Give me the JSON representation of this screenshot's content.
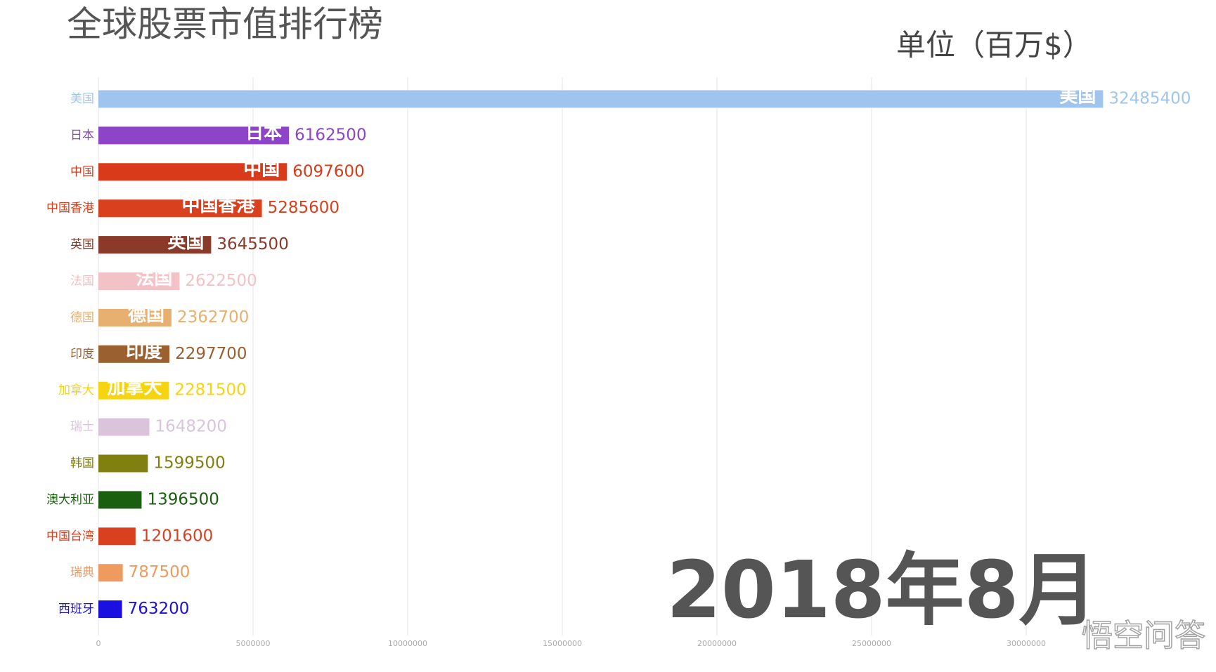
{
  "chart_data": {
    "type": "bar",
    "orientation": "horizontal",
    "title": "全球股票市值排行榜",
    "unit_label": "单位（百万$）",
    "date_label": "2018年8月",
    "watermark": "悟空问答",
    "categories": [
      "美国",
      "日本",
      "中国",
      "中国香港",
      "英国",
      "法国",
      "德国",
      "印度",
      "加拿大",
      "瑞士",
      "韩国",
      "澳大利亚",
      "中国台湾",
      "瑞典",
      "西班牙"
    ],
    "values": [
      32485400,
      6162500,
      6097600,
      5285600,
      3645500,
      2622500,
      2362700,
      2297700,
      2281500,
      1648200,
      1599500,
      1396500,
      1201600,
      787500,
      763200
    ],
    "colors": [
      "#9fc5ef",
      "#8e44c8",
      "#d93a1a",
      "#d9401e",
      "#8b3a2a",
      "#f2c2c6",
      "#e8b070",
      "#9a6030",
      "#f5d410",
      "#d9c4dc",
      "#808010",
      "#1a5e10",
      "#d94020",
      "#ef9b60",
      "#1a10e0"
    ],
    "xlim": [
      0,
      35000000
    ],
    "xticks": [
      0,
      5000000,
      10000000,
      15000000,
      20000000,
      25000000,
      30000000
    ],
    "grid": true
  }
}
